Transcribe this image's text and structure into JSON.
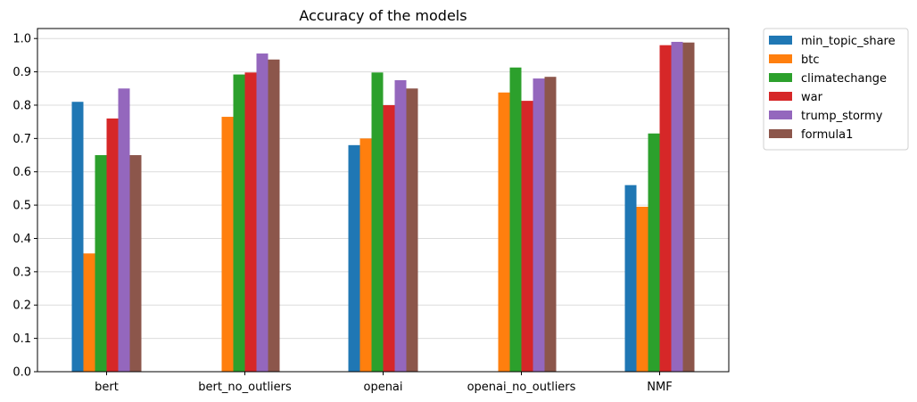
{
  "chart_data": {
    "type": "bar",
    "title": "Accuracy of the models",
    "xlabel": "",
    "ylabel": "",
    "ylim": [
      0,
      1.03
    ],
    "yticks": [
      "0.0",
      "0.1",
      "0.2",
      "0.3",
      "0.4",
      "0.5",
      "0.6",
      "0.7",
      "0.8",
      "0.9",
      "1.0"
    ],
    "grid": "horizontal",
    "legend_position": "outside-top-right",
    "categories": [
      "bert",
      "bert_no_outliers",
      "openai",
      "openai_no_outliers",
      "NMF"
    ],
    "series": [
      {
        "name": "min_topic_share",
        "color": "#1f77b4",
        "values": [
          0.81,
          null,
          0.68,
          null,
          0.56
        ]
      },
      {
        "name": "btc",
        "color": "#ff7f0e",
        "values": [
          0.355,
          0.765,
          0.7,
          0.838,
          0.495
        ]
      },
      {
        "name": "climatechange",
        "color": "#2ca02c",
        "values": [
          0.65,
          0.892,
          0.898,
          0.913,
          0.715
        ]
      },
      {
        "name": "war",
        "color": "#d62728",
        "values": [
          0.76,
          0.898,
          0.8,
          0.813,
          0.98
        ]
      },
      {
        "name": "trump_stormy",
        "color": "#9467bd",
        "values": [
          0.85,
          0.955,
          0.875,
          0.88,
          0.99
        ]
      },
      {
        "name": "formula1",
        "color": "#8c564b",
        "values": [
          0.65,
          0.937,
          0.85,
          0.885,
          0.988
        ]
      }
    ]
  }
}
